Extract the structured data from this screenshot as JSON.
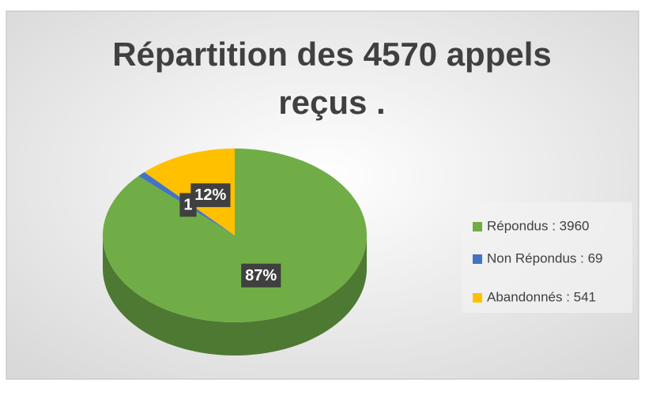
{
  "chart_data": {
    "type": "pie3d",
    "title": [
      "Répartition des 4570 appels",
      "reçus ."
    ],
    "categories": [
      "Répondus : 3960",
      "Non Répondus : 69",
      "Abandonnés : 541"
    ],
    "values": [
      87,
      1,
      12
    ],
    "value_labels": [
      "87%",
      "1",
      "12%"
    ],
    "colors": [
      "#70ad47",
      "#4472c4",
      "#ffc000"
    ],
    "legend": "right"
  }
}
